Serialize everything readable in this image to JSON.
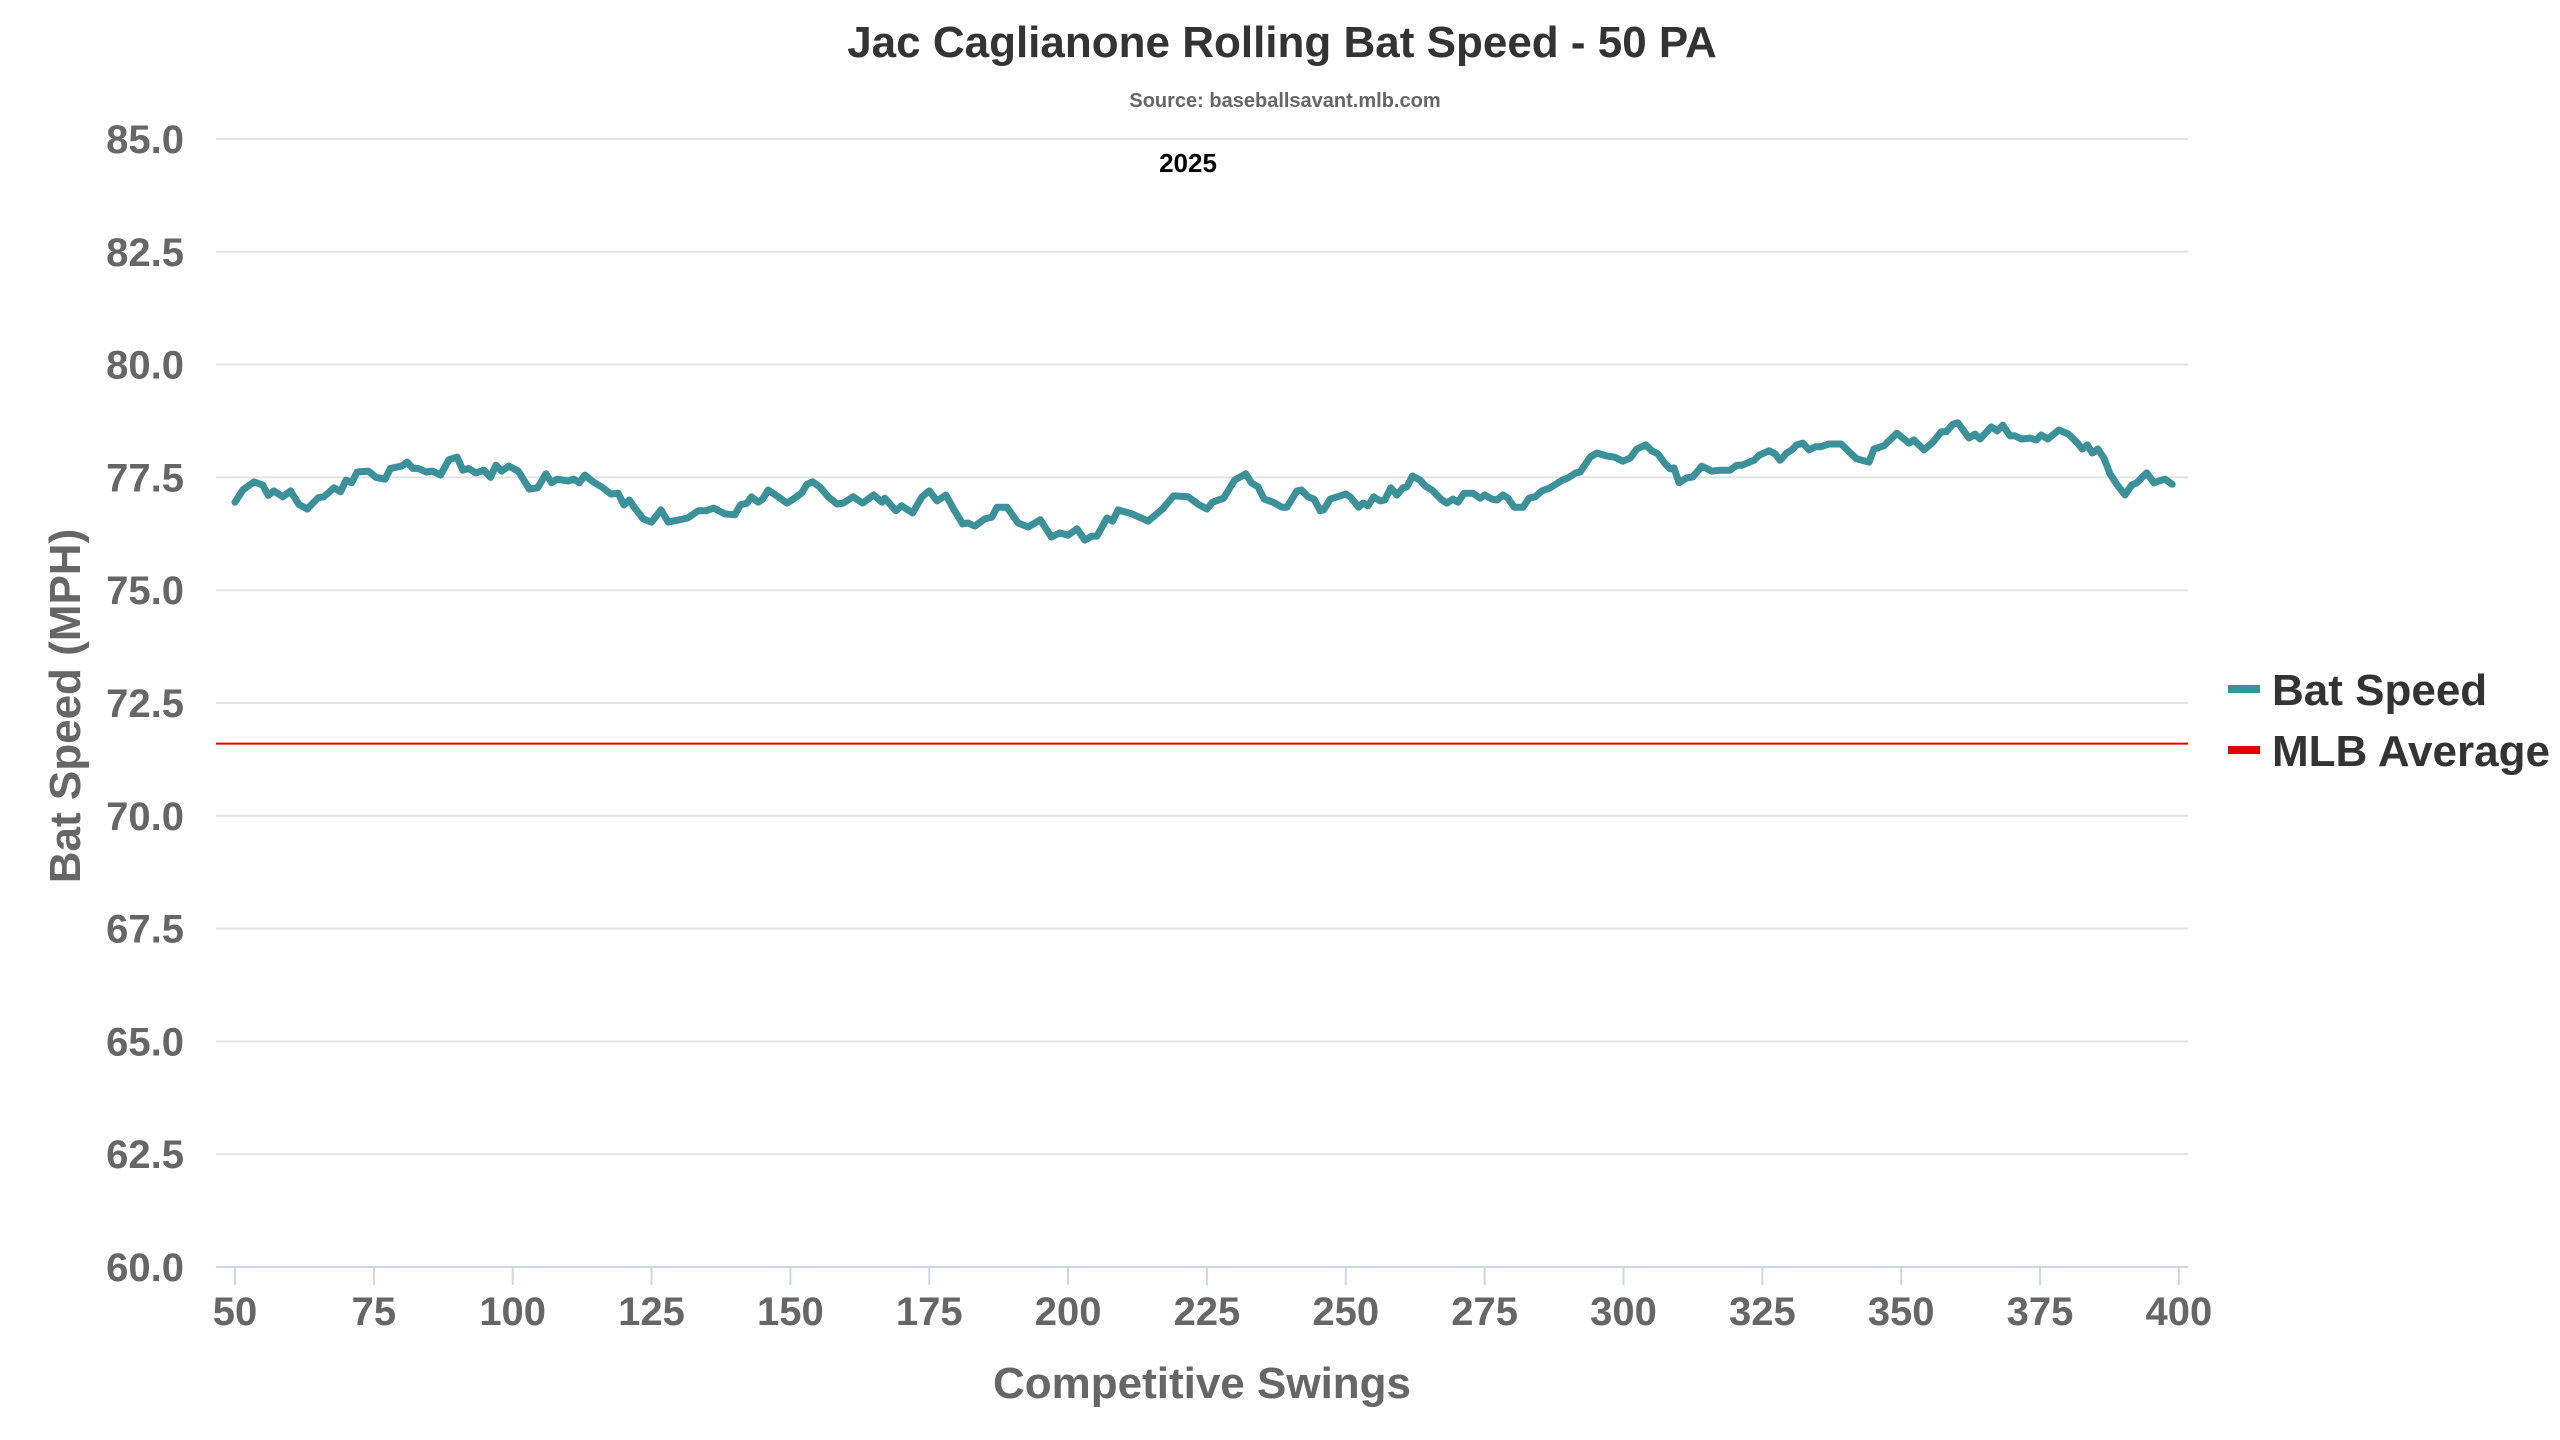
{
  "chart_data": {
    "type": "line",
    "title": "Jac Caglianone Rolling Bat Speed - 50 PA",
    "subtitle": "Source: baseballsavant.mlb.com",
    "annotation": "2025",
    "xlabel": "Competitive Swings",
    "ylabel": "Bat Speed (MPH)",
    "xlim": [
      47,
      405
    ],
    "ylim": [
      60,
      85
    ],
    "x_ticks": [
      "50",
      "75",
      "100",
      "125",
      "150",
      "175",
      "200",
      "225",
      "250",
      "275",
      "300",
      "325",
      "350",
      "375",
      "400"
    ],
    "y_ticks": [
      "60.0",
      "62.5",
      "65.0",
      "67.5",
      "70.0",
      "72.5",
      "75.0",
      "77.5",
      "80.0",
      "82.5",
      "85.0"
    ],
    "grid": true,
    "legend_position": "right",
    "series": [
      {
        "name": "Bat Speed",
        "color": "#3a9199",
        "x": [
          50,
          51.4,
          53.4,
          55,
          56,
          57,
          58.6,
          60,
          61.5,
          63,
          65,
          66,
          67.8,
          69,
          70,
          71,
          72,
          74,
          75.4,
          77,
          78,
          80,
          81,
          82,
          83,
          84.4,
          85.6,
          87,
          88.5,
          90,
          91,
          92,
          93.4,
          94.8,
          96,
          97,
          98,
          99.3,
          101,
          102,
          103,
          104.5,
          106,
          107,
          108,
          110,
          111,
          112,
          113,
          114.5,
          116,
          117.7,
          119,
          120,
          121,
          122,
          123.5,
          125,
          126.7,
          128,
          130,
          131.5,
          133.4,
          134.8,
          136.2,
          138.2,
          140,
          141,
          142.2,
          143,
          144.2,
          145,
          146,
          147.8,
          149.4,
          150.5,
          152,
          153,
          154,
          155.3,
          156.8,
          158.4,
          159.5,
          161.3,
          163,
          165,
          166.5,
          167,
          169,
          170,
          172,
          173.7,
          175,
          176.4,
          178,
          179.3,
          181,
          182,
          183.2,
          185,
          186.3,
          187.2,
          189,
          191,
          192.8,
          195,
          197,
          198.5,
          200,
          201.6,
          203,
          204.3,
          205.2,
          207,
          208,
          209,
          211.5,
          214.4,
          217,
          219,
          221.6,
          223.6,
          225,
          226,
          228,
          230,
          232,
          233,
          234.2,
          235.3,
          236.9,
          238.5,
          239.4,
          241.2,
          242,
          243.2,
          244.3,
          245.4,
          246,
          247.2,
          250,
          250.8,
          252.3,
          253.1,
          254,
          255,
          256.2,
          257,
          258.1,
          259.2,
          260.3,
          261,
          262,
          263.4,
          264.3,
          265.5,
          267.3,
          268.2,
          269.3,
          270.2,
          271.3,
          272.9,
          274.2,
          275,
          276.3,
          277.2,
          278.3,
          279.2,
          280.3,
          281.9,
          283,
          284.1,
          285.3,
          286.8,
          289,
          290,
          291.4,
          292.2,
          294,
          295.2,
          297.2,
          298.4,
          299.9,
          301.2,
          302.4,
          304,
          305.1,
          306.2,
          307.5,
          308.4,
          309.1,
          310,
          311.4,
          312.5,
          314.1,
          315.9,
          317.4,
          319.2,
          320.4,
          321.3,
          323.5,
          324.4,
          326.2,
          327.3,
          328.2,
          329.4,
          330.3,
          331.2,
          332.3,
          333.4,
          334.6,
          335.5,
          337,
          339.2,
          341,
          342,
          344.2,
          345.1,
          346.9,
          349.2,
          351.4,
          352.3,
          354.1,
          355.7,
          357.2,
          358.1,
          359.3,
          360.2,
          362.2,
          363.3,
          364.2,
          366.2,
          367.3,
          368.3,
          369.6,
          370.5,
          371.6,
          373.2,
          374.3,
          375.2,
          376.4,
          378.4,
          380.1,
          381.6,
          382.6,
          383.5,
          384.4,
          385.4,
          386.5,
          387.6,
          388.8,
          390.3,
          391.5,
          392.4,
          394.2,
          395.5,
          396.9,
          397.5,
          398.8
        ],
        "values": [
          76.95,
          77.22,
          77.4,
          77.33,
          77.1,
          77.2,
          77.07,
          77.2,
          76.9,
          76.8,
          77.05,
          77.07,
          77.27,
          77.18,
          77.44,
          77.38,
          77.62,
          77.64,
          77.5,
          77.46,
          77.7,
          77.75,
          77.84,
          77.7,
          77.7,
          77.62,
          77.64,
          77.55,
          77.89,
          77.95,
          77.66,
          77.7,
          77.6,
          77.66,
          77.5,
          77.77,
          77.64,
          77.75,
          77.64,
          77.44,
          77.24,
          77.27,
          77.58,
          77.38,
          77.46,
          77.42,
          77.46,
          77.38,
          77.55,
          77.4,
          77.29,
          77.13,
          77.15,
          76.89,
          77.0,
          76.82,
          76.58,
          76.51,
          76.78,
          76.51,
          76.56,
          76.6,
          76.76,
          76.76,
          76.82,
          76.69,
          76.67,
          76.89,
          76.93,
          77.07,
          76.95,
          77.02,
          77.22,
          77.07,
          76.93,
          77.02,
          77.15,
          77.35,
          77.4,
          77.29,
          77.07,
          76.91,
          76.93,
          77.07,
          76.93,
          77.11,
          76.95,
          77.04,
          76.76,
          76.87,
          76.71,
          77.07,
          77.2,
          76.98,
          77.11,
          76.82,
          76.47,
          76.49,
          76.42,
          76.58,
          76.62,
          76.84,
          76.84,
          76.49,
          76.4,
          76.56,
          76.18,
          76.27,
          76.22,
          76.36,
          76.11,
          76.2,
          76.2,
          76.6,
          76.53,
          76.78,
          76.69,
          76.53,
          76.8,
          77.09,
          77.07,
          76.89,
          76.8,
          76.95,
          77.04,
          77.44,
          77.58,
          77.38,
          77.29,
          77.02,
          76.95,
          76.84,
          76.84,
          77.2,
          77.22,
          77.07,
          77.02,
          76.76,
          76.78,
          77.02,
          77.13,
          77.07,
          76.84,
          76.93,
          76.87,
          77.07,
          76.98,
          77.0,
          77.27,
          77.11,
          77.27,
          77.29,
          77.53,
          77.44,
          77.31,
          77.22,
          77.0,
          76.93,
          77.02,
          76.95,
          77.15,
          77.15,
          77.04,
          77.11,
          77.02,
          77.0,
          77.11,
          77.04,
          76.84,
          76.84,
          77.04,
          77.07,
          77.2,
          77.27,
          77.44,
          77.49,
          77.6,
          77.62,
          77.95,
          78.04,
          77.97,
          77.95,
          77.86,
          77.93,
          78.13,
          78.22,
          78.09,
          78.02,
          77.8,
          77.69,
          77.71,
          77.38,
          77.49,
          77.51,
          77.75,
          77.64,
          77.66,
          77.66,
          77.77,
          77.77,
          77.88,
          77.99,
          78.09,
          78.02,
          77.88,
          78.04,
          78.11,
          78.22,
          78.26,
          78.11,
          78.18,
          78.18,
          78.24,
          78.24,
          78.02,
          77.91,
          77.84,
          78.13,
          78.2,
          78.48,
          78.26,
          78.33,
          78.11,
          78.28,
          78.51,
          78.51,
          78.68,
          78.71,
          78.37,
          78.46,
          78.35,
          78.62,
          78.53,
          78.66,
          78.42,
          78.42,
          78.35,
          78.37,
          78.33,
          78.44,
          78.35,
          78.55,
          78.46,
          78.28,
          78.13,
          78.22,
          78.04,
          78.13,
          77.93,
          77.58,
          77.35,
          77.11,
          77.33,
          77.38,
          77.6,
          77.38,
          77.44,
          77.46,
          77.35
        ]
      },
      {
        "name": "MLB Average",
        "color": "#e60000",
        "value": 71.6
      }
    ]
  }
}
